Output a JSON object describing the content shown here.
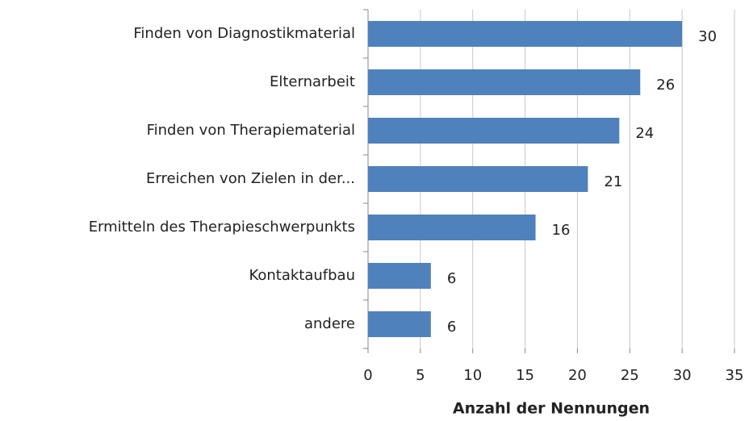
{
  "chart_data": {
    "type": "hbar",
    "xlabel": "Anzahl der Nennungen",
    "categories": [
      "Finden von Diagnostikmaterial",
      "Elternarbeit",
      "Finden von Therapiematerial",
      "Erreichen von Zielen in der...",
      "Ermitteln des Therapieschwerpunkts",
      "Kontaktaufbau",
      "andere"
    ],
    "values": [
      30,
      26,
      24,
      21,
      16,
      6,
      6
    ],
    "color": "#4f81bd",
    "xlim": [
      0,
      35
    ],
    "xticks": [
      0,
      5,
      10,
      15,
      20,
      25,
      30,
      35
    ],
    "grid": true
  }
}
